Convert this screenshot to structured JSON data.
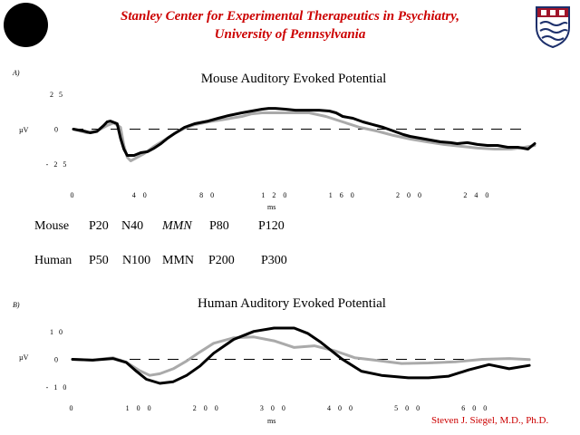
{
  "header": {
    "line1": "Stanley Center for Experimental Therapeutics in Psychiatry,",
    "line2": "University of Pennsylvania",
    "logo_left": "dark circular seal logo",
    "logo_right": "penn-shield-icon"
  },
  "author": "Steven J. Siegel, M.D., Ph.D.",
  "colors": {
    "header_red": "#cc0000",
    "series_black": "#000000",
    "series_gray": "#aaaaaa"
  },
  "panel_a": {
    "tag": "A)",
    "unit_label": "µV",
    "xunit": "ms",
    "chart_data": {
      "type": "line",
      "title": "Mouse Auditory Evoked Potential",
      "xlabel": "ms",
      "ylabel": "µV",
      "xlim": [
        0,
        274
      ],
      "ylim": [
        -25,
        25
      ],
      "x_ticks": [
        0,
        40,
        80,
        120,
        160,
        200,
        240
      ],
      "x_tick_labels": [
        "0",
        "4 0",
        "8 0",
        "1 2 0",
        "1 6 0",
        "2 0 0",
        "2 4 0"
      ],
      "y_ticks": [
        25,
        0,
        -25
      ],
      "y_tick_labels": [
        "2 5",
        "0",
        "- 2 5"
      ],
      "baseline": 0,
      "series": [
        {
          "color": "#000000",
          "x": [
            0,
            6,
            10,
            14,
            18,
            20,
            22,
            26,
            28,
            30,
            32,
            36,
            40,
            44,
            48,
            52,
            56,
            60,
            66,
            72,
            80,
            86,
            92,
            100,
            106,
            112,
            116,
            120,
            126,
            132,
            140,
            146,
            152,
            156,
            160,
            166,
            172,
            178,
            184,
            190,
            196,
            200,
            206,
            212,
            218,
            224,
            228,
            234,
            240,
            246,
            252,
            258,
            264,
            270,
            274
          ],
          "y": [
            0,
            -1.3,
            -2.6,
            -1.6,
            2.6,
            5.2,
            5.8,
            3.9,
            -6.5,
            -14.3,
            -18.8,
            -18.8,
            -16.9,
            -16.2,
            -13.6,
            -10.4,
            -6.5,
            -3.2,
            1.3,
            3.9,
            5.8,
            7.8,
            9.7,
            11.7,
            13,
            14.3,
            14.9,
            14.9,
            14.3,
            13.6,
            13.6,
            13.6,
            13,
            11.7,
            9.1,
            7.8,
            5.2,
            3.2,
            1.3,
            -1.3,
            -3.9,
            -5.2,
            -6.5,
            -7.8,
            -9.1,
            -9.7,
            -10.4,
            -9.7,
            -11,
            -11.7,
            -11.7,
            -13,
            -13,
            -14.3,
            -10.4
          ]
        },
        {
          "color": "#aaaaaa",
          "x": [
            0,
            8,
            14,
            20,
            24,
            28,
            30,
            32,
            34,
            38,
            42,
            48,
            54,
            60,
            66,
            72,
            80,
            90,
            100,
            106,
            112,
            118,
            124,
            132,
            140,
            150,
            160,
            170,
            180,
            190,
            200,
            210,
            220,
            230,
            240,
            250,
            260,
            268,
            274
          ],
          "y": [
            0,
            -2.6,
            -1.3,
            2.6,
            4.5,
            1.3,
            -11.7,
            -20.1,
            -22.7,
            -20.1,
            -17.5,
            -12.3,
            -7.8,
            -3.2,
            0.6,
            3.2,
            5.2,
            7.1,
            9.1,
            11,
            11.7,
            11.7,
            11.7,
            11.7,
            11.7,
            9.1,
            5.2,
            1.3,
            -1.3,
            -4.5,
            -7.1,
            -9.1,
            -11,
            -12.3,
            -13.6,
            -14.3,
            -14.3,
            -13,
            -11.7
          ]
        }
      ]
    }
  },
  "components": {
    "mouse": [
      "Mouse",
      "P20",
      "N40",
      "MMN",
      "P80",
      "P120"
    ],
    "human": [
      "Human",
      "P50",
      "N100",
      "MMN",
      "P200",
      "P300"
    ]
  },
  "panel_b": {
    "tag": "B)",
    "unit_label": "µV",
    "xunit": "ms",
    "chart_data": {
      "type": "line",
      "title": "Human Auditory Evoked Potential",
      "xlabel": "ms",
      "ylabel": "µV",
      "xlim": [
        0,
        688
      ],
      "ylim": [
        -10,
        10
      ],
      "x_ticks": [
        0,
        100,
        200,
        300,
        400,
        500,
        600
      ],
      "x_tick_labels": [
        "0",
        "1 0 0",
        "2 0 0",
        "3 0 0",
        "4 0 0",
        "5 0 0",
        "6 0 0"
      ],
      "y_ticks": [
        10,
        0,
        -10
      ],
      "y_tick_labels": [
        "1 0",
        "0",
        "- 1 0"
      ],
      "baseline": 0,
      "series": [
        {
          "color": "#000000",
          "x": [
            0,
            30,
            60,
            80,
            95,
            110,
            130,
            150,
            170,
            190,
            210,
            240,
            270,
            300,
            330,
            350,
            370,
            400,
            430,
            460,
            500,
            530,
            560,
            590,
            620,
            650,
            680
          ],
          "y": [
            0,
            -0.3,
            0.3,
            -1.1,
            -4.3,
            -7.2,
            -8.7,
            -8.1,
            -5.8,
            -2.4,
            2.2,
            7.2,
            10.1,
            11.3,
            11.3,
            9.4,
            6.1,
            0.3,
            -4.3,
            -5.8,
            -6.7,
            -6.7,
            -6.1,
            -3.8,
            -1.9,
            -3.4,
            -2.2
          ]
        },
        {
          "color": "#aaaaaa",
          "x": [
            0,
            30,
            60,
            80,
            100,
            115,
            130,
            150,
            170,
            190,
            210,
            240,
            270,
            300,
            330,
            360,
            390,
            420,
            450,
            490,
            530,
            570,
            610,
            650,
            680
          ],
          "y": [
            0,
            -0.3,
            0.6,
            -1,
            -4.1,
            -5.8,
            -5.2,
            -3.4,
            -0.6,
            2.7,
            5.8,
            7.8,
            8.1,
            6.7,
            4.3,
            4.9,
            3.1,
            0.6,
            -0.3,
            -1.5,
            -1.3,
            -0.9,
            0,
            0.3,
            -0.1
          ]
        }
      ]
    }
  }
}
